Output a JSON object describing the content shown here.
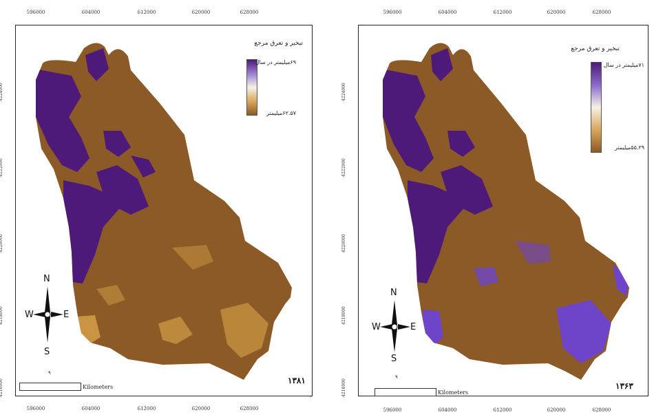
{
  "maps": [
    {
      "id": "left",
      "year": "۱۳۸۱",
      "legend": {
        "title": "تبخیر و تعرق مرجع",
        "high_label": "۶۹میلیمتر در سال",
        "low_label": "۶۲.۵۷میلیمتر"
      },
      "scale_label": "Kilometers",
      "north_sub": "۹"
    },
    {
      "id": "right",
      "year": "۱۳۶۳",
      "legend": {
        "title": "تبخیر و تعرق مرجع",
        "high_label": "۷۱میلیمتر در سال",
        "low_label": "۵۵.۲۹میلیمتر"
      },
      "scale_label": "Kilometers",
      "north_sub": "۹"
    }
  ],
  "x_ticks": [
    "596000",
    "604000",
    "612000",
    "620000",
    "628000"
  ],
  "y_ticks": [
    "4224000",
    "4222000",
    "4220000",
    "4218000",
    "4216000"
  ],
  "compass": {
    "n": "N",
    "s": "S",
    "e": "E",
    "w": "W"
  },
  "colors": {
    "brown": "#8b5a26",
    "purple": "#4d1a7a",
    "light_purple": "#6e45c9",
    "tan": "#c99542"
  }
}
